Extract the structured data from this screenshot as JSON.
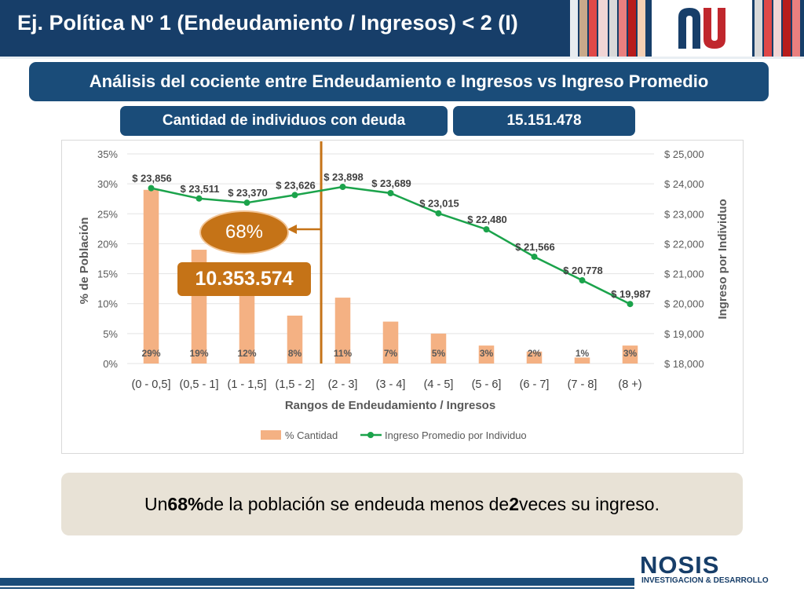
{
  "header": {
    "title": "Ej. Política Nº 1 (Endeudamiento / Ingresos) < 2 (I)",
    "subtitle": "Análisis del cociente entre Endeudamiento e Ingresos vs Ingreso Promedio"
  },
  "summary": {
    "count_label": "Cantidad de individuos con deuda",
    "count_value": "15.151.478"
  },
  "callouts": {
    "percent": "68%",
    "count": "10.353.574"
  },
  "conclusion": {
    "prefix": "Un ",
    "pct": "68%",
    "middle": " de la población se endeuda menos de ",
    "num": "2",
    "suffix": " veces su ingreso."
  },
  "footer": {
    "brand": "NOSIS",
    "tagline": "INVESTIGACION & DESARROLLO"
  },
  "colors": {
    "navy": "#173e69",
    "bar": "#f4b183",
    "line": "#1ba34b",
    "callout": "#c57317"
  },
  "chart_data": {
    "type": "bar+line",
    "categories": [
      "(0 - 0,5]",
      "(0,5 - 1]",
      "(1 - 1,5]",
      "(1,5 - 2]",
      "(2 - 3]",
      "(3 - 4]",
      "(4 - 5]",
      "(5 - 6]",
      "(6 - 7]",
      "(7 - 8]",
      "(8 +)"
    ],
    "xlabel": "Rangos de Endeudamiento / Ingresos",
    "ylabel_left": "% de Población",
    "ylabel_right": "Ingreso por Individuo",
    "ylim_left": [
      0,
      35
    ],
    "yticks_left": [
      "0%",
      "5%",
      "10%",
      "15%",
      "20%",
      "25%",
      "30%",
      "35%"
    ],
    "ylim_right": [
      18000,
      25000
    ],
    "yticks_right": [
      "$ 18,000",
      "$ 19,000",
      "$ 20,000",
      "$ 21,000",
      "$ 22,000",
      "$ 23,000",
      "$ 24,000",
      "$ 25,000"
    ],
    "series": [
      {
        "name": "% Cantidad",
        "type": "bar",
        "values": [
          29,
          19,
          12,
          8,
          11,
          7,
          5,
          3,
          2,
          1,
          3
        ],
        "labels": [
          "29%",
          "19%",
          "12%",
          "8%",
          "11%",
          "7%",
          "5%",
          "3%",
          "2%",
          "1%",
          "3%"
        ]
      },
      {
        "name": "Ingreso Promedio por Individuo",
        "type": "line",
        "values": [
          23856,
          23511,
          23370,
          23626,
          23898,
          23689,
          23015,
          22480,
          21566,
          20778,
          19987
        ],
        "labels": [
          "$ 23,856",
          "$ 23,511",
          "$ 23,370",
          "$ 23,626",
          "$ 23,898",
          "$ 23,689",
          "$ 23,015",
          "$ 22,480",
          "$ 21,566",
          "$ 20,778",
          "$ 19,987"
        ]
      }
    ],
    "threshold_after_category": "(1,5 - 2]",
    "legend_position": "bottom"
  }
}
